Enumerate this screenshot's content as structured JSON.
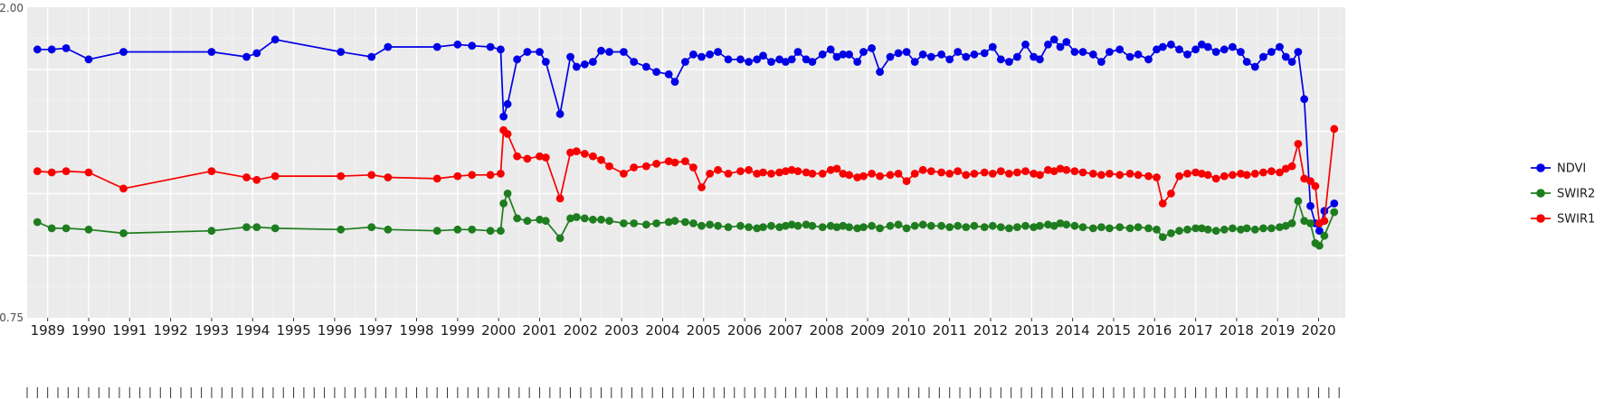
{
  "figure": {
    "background": "#FFFFFF",
    "panel_background": "#EBEBEB",
    "grid_major_color": "#FFFFFF",
    "grid_minor_color": "#F4F4F4",
    "tick_color": "#333333",
    "axis_text_color": "#4D4D4D",
    "label_text_color": "#1A1A1A"
  },
  "axes": {
    "y_tick_labels_visible": [
      "2.00",
      "0.75"
    ],
    "x_tick_labels": [
      "1989",
      "1990",
      "1991",
      "1992",
      "1993",
      "1994",
      "1995",
      "1996",
      "1997",
      "1998",
      "1999",
      "2000",
      "2001",
      "2002",
      "2003",
      "2004",
      "2005",
      "2006",
      "2007",
      "2008",
      "2009",
      "2010",
      "2011",
      "2012",
      "2013",
      "2014",
      "2015",
      "2016",
      "2017",
      "2018",
      "2019",
      "2020"
    ]
  },
  "legend": {
    "position": "right",
    "items": [
      {
        "label": "NDVI",
        "color": "#0000E6"
      },
      {
        "label": "SWIR2",
        "color": "#1E7D1E"
      },
      {
        "label": "SWIR1",
        "color": "#F80000"
      }
    ]
  },
  "chart_data": {
    "type": "line",
    "title": "",
    "xlabel": "",
    "ylabel": "",
    "grid": true,
    "marker": "circle",
    "legend_position": "right",
    "xlim": [
      1988.5,
      2020.65
    ],
    "ylim": [
      0.75,
      2.0
    ],
    "y_gridlines_major": [
      1.0,
      1.25,
      1.5,
      1.75
    ],
    "y_gridlines_minor": [
      0.875,
      1.125,
      1.375,
      1.625,
      1.875
    ],
    "x": [
      1988.75,
      1989.1,
      1989.45,
      1990.0,
      1990.85,
      1993.0,
      1993.85,
      1994.1,
      1994.55,
      1996.15,
      1996.9,
      1997.3,
      1998.5,
      1999.0,
      1999.35,
      1999.8,
      2000.05,
      2000.12,
      2000.22,
      2000.45,
      2000.7,
      2001.0,
      2001.15,
      2001.5,
      2001.75,
      2001.9,
      2002.1,
      2002.3,
      2002.5,
      2002.7,
      2003.05,
      2003.3,
      2003.6,
      2003.85,
      2004.15,
      2004.3,
      2004.55,
      2004.75,
      2004.95,
      2005.15,
      2005.35,
      2005.6,
      2005.9,
      2006.1,
      2006.3,
      2006.45,
      2006.65,
      2006.85,
      2007.0,
      2007.15,
      2007.3,
      2007.5,
      2007.65,
      2007.9,
      2008.1,
      2008.25,
      2008.4,
      2008.55,
      2008.75,
      2008.9,
      2009.1,
      2009.3,
      2009.55,
      2009.75,
      2009.95,
      2010.15,
      2010.35,
      2010.55,
      2010.8,
      2011.0,
      2011.2,
      2011.4,
      2011.6,
      2011.85,
      2012.05,
      2012.25,
      2012.45,
      2012.65,
      2012.85,
      2013.05,
      2013.2,
      2013.4,
      2013.55,
      2013.7,
      2013.85,
      2014.05,
      2014.25,
      2014.5,
      2014.7,
      2014.9,
      2015.15,
      2015.4,
      2015.6,
      2015.85,
      2016.05,
      2016.2,
      2016.4,
      2016.6,
      2016.8,
      2017.0,
      2017.15,
      2017.3,
      2017.5,
      2017.7,
      2017.9,
      2018.1,
      2018.25,
      2018.45,
      2018.65,
      2018.85,
      2019.05,
      2019.2,
      2019.35,
      2019.5,
      2019.65,
      2019.8,
      2019.92,
      2020.02,
      2020.14,
      2020.38
    ],
    "series": [
      {
        "name": "NDVI",
        "color": "#0000E6",
        "values": [
          1.83,
          1.83,
          1.835,
          1.79,
          1.82,
          1.82,
          1.8,
          1.815,
          1.87,
          1.82,
          1.8,
          1.84,
          1.84,
          1.85,
          1.845,
          1.84,
          1.83,
          1.56,
          1.61,
          1.79,
          1.82,
          1.82,
          1.78,
          1.57,
          1.8,
          1.76,
          1.77,
          1.78,
          1.825,
          1.82,
          1.82,
          1.78,
          1.76,
          1.74,
          1.73,
          1.7,
          1.78,
          1.81,
          1.8,
          1.81,
          1.82,
          1.79,
          1.79,
          1.78,
          1.79,
          1.805,
          1.78,
          1.79,
          1.78,
          1.79,
          1.82,
          1.79,
          1.78,
          1.81,
          1.83,
          1.8,
          1.81,
          1.81,
          1.78,
          1.82,
          1.835,
          1.74,
          1.8,
          1.815,
          1.82,
          1.78,
          1.81,
          1.8,
          1.81,
          1.79,
          1.82,
          1.8,
          1.81,
          1.815,
          1.84,
          1.79,
          1.78,
          1.8,
          1.85,
          1.8,
          1.79,
          1.85,
          1.87,
          1.84,
          1.86,
          1.82,
          1.82,
          1.81,
          1.78,
          1.82,
          1.83,
          1.8,
          1.81,
          1.79,
          1.83,
          1.84,
          1.85,
          1.83,
          1.81,
          1.83,
          1.85,
          1.84,
          1.82,
          1.83,
          1.84,
          1.82,
          1.78,
          1.76,
          1.8,
          1.82,
          1.84,
          1.8,
          1.78,
          1.82,
          1.63,
          1.2,
          1.13,
          1.1,
          1.18,
          1.21
        ]
      },
      {
        "name": "SWIR2",
        "color": "#1E7D1E",
        "values": [
          1.135,
          1.11,
          1.11,
          1.105,
          1.09,
          1.1,
          1.115,
          1.115,
          1.11,
          1.105,
          1.115,
          1.105,
          1.1,
          1.105,
          1.105,
          1.1,
          1.1,
          1.21,
          1.25,
          1.15,
          1.14,
          1.145,
          1.14,
          1.07,
          1.15,
          1.155,
          1.15,
          1.145,
          1.145,
          1.14,
          1.13,
          1.13,
          1.125,
          1.13,
          1.135,
          1.14,
          1.135,
          1.13,
          1.12,
          1.125,
          1.12,
          1.115,
          1.12,
          1.115,
          1.11,
          1.115,
          1.12,
          1.115,
          1.12,
          1.125,
          1.12,
          1.125,
          1.12,
          1.115,
          1.12,
          1.115,
          1.12,
          1.115,
          1.11,
          1.115,
          1.12,
          1.11,
          1.12,
          1.125,
          1.11,
          1.12,
          1.125,
          1.12,
          1.12,
          1.115,
          1.12,
          1.115,
          1.12,
          1.115,
          1.12,
          1.115,
          1.11,
          1.115,
          1.12,
          1.115,
          1.12,
          1.125,
          1.12,
          1.13,
          1.125,
          1.12,
          1.115,
          1.11,
          1.115,
          1.11,
          1.115,
          1.11,
          1.115,
          1.11,
          1.105,
          1.075,
          1.09,
          1.1,
          1.105,
          1.11,
          1.11,
          1.105,
          1.1,
          1.105,
          1.11,
          1.105,
          1.11,
          1.105,
          1.11,
          1.11,
          1.115,
          1.12,
          1.13,
          1.22,
          1.14,
          1.13,
          1.05,
          1.04,
          1.08,
          1.175
        ]
      },
      {
        "name": "SWIR1",
        "color": "#F80000",
        "values": [
          1.34,
          1.335,
          1.34,
          1.335,
          1.27,
          1.34,
          1.315,
          1.305,
          1.32,
          1.32,
          1.325,
          1.315,
          1.31,
          1.32,
          1.325,
          1.325,
          1.33,
          1.505,
          1.49,
          1.4,
          1.39,
          1.4,
          1.395,
          1.23,
          1.415,
          1.42,
          1.41,
          1.4,
          1.385,
          1.36,
          1.33,
          1.355,
          1.36,
          1.37,
          1.38,
          1.375,
          1.38,
          1.355,
          1.275,
          1.33,
          1.345,
          1.33,
          1.34,
          1.345,
          1.33,
          1.335,
          1.33,
          1.335,
          1.34,
          1.345,
          1.34,
          1.335,
          1.33,
          1.33,
          1.345,
          1.35,
          1.33,
          1.325,
          1.315,
          1.32,
          1.33,
          1.32,
          1.325,
          1.33,
          1.3,
          1.33,
          1.345,
          1.34,
          1.335,
          1.33,
          1.34,
          1.325,
          1.33,
          1.335,
          1.33,
          1.34,
          1.33,
          1.335,
          1.34,
          1.33,
          1.325,
          1.345,
          1.34,
          1.35,
          1.345,
          1.34,
          1.335,
          1.33,
          1.325,
          1.33,
          1.325,
          1.33,
          1.325,
          1.32,
          1.315,
          1.21,
          1.25,
          1.32,
          1.33,
          1.335,
          1.33,
          1.325,
          1.31,
          1.32,
          1.325,
          1.33,
          1.325,
          1.33,
          1.335,
          1.34,
          1.335,
          1.35,
          1.36,
          1.45,
          1.31,
          1.3,
          1.28,
          1.13,
          1.14,
          1.51
        ]
      }
    ]
  }
}
